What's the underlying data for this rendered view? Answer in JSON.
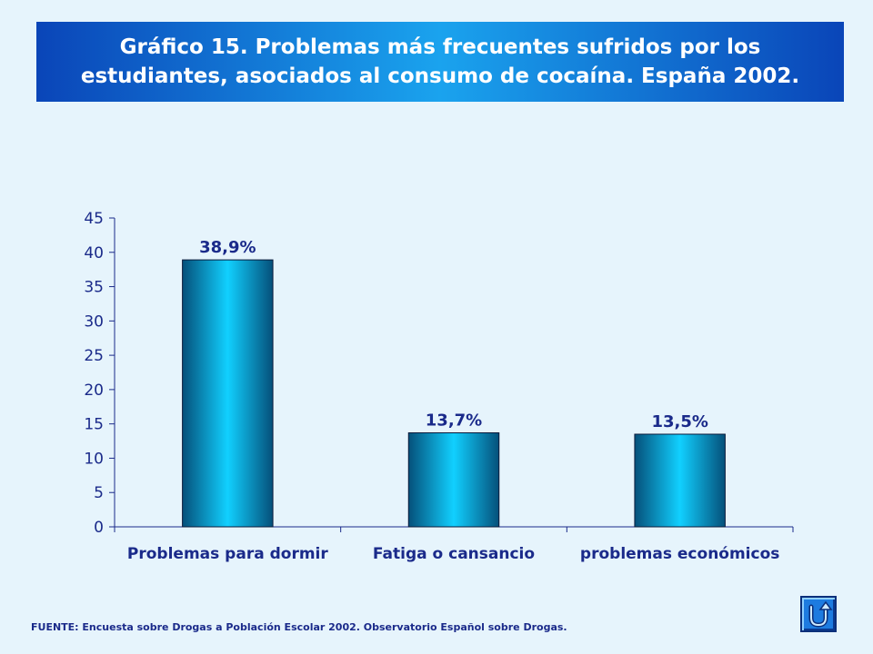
{
  "title": "Gráfico 15. Problemas más frecuentes sufridos por los\nestudiantes, asociados al consumo de cocaína. España 2002.",
  "footer": "FUENTE: Encuesta sobre Drogas a Población Escolar 2002. Observatorio Español sobre Drogas.",
  "nav_button": {
    "icon": "return-arrow-icon"
  },
  "colors": {
    "title_dark": "#0a45b8",
    "title_light": "#1aa3ee",
    "bar_dark": "#05507a",
    "bar_light": "#11d0ff",
    "text": "#1a2a8a"
  },
  "chart_data": {
    "type": "bar",
    "title": "",
    "xlabel": "",
    "ylabel": "",
    "categories": [
      "Problemas para dormir",
      "Fatiga o cansancio",
      "problemas económicos"
    ],
    "values": [
      38.9,
      13.7,
      13.5
    ],
    "data_labels": [
      "38,9%",
      "13,7%",
      "13,5%"
    ],
    "ylim": [
      0,
      45
    ],
    "yticks": [
      0,
      5,
      10,
      15,
      20,
      25,
      30,
      35,
      40,
      45
    ],
    "grid": false,
    "legend": "none"
  }
}
